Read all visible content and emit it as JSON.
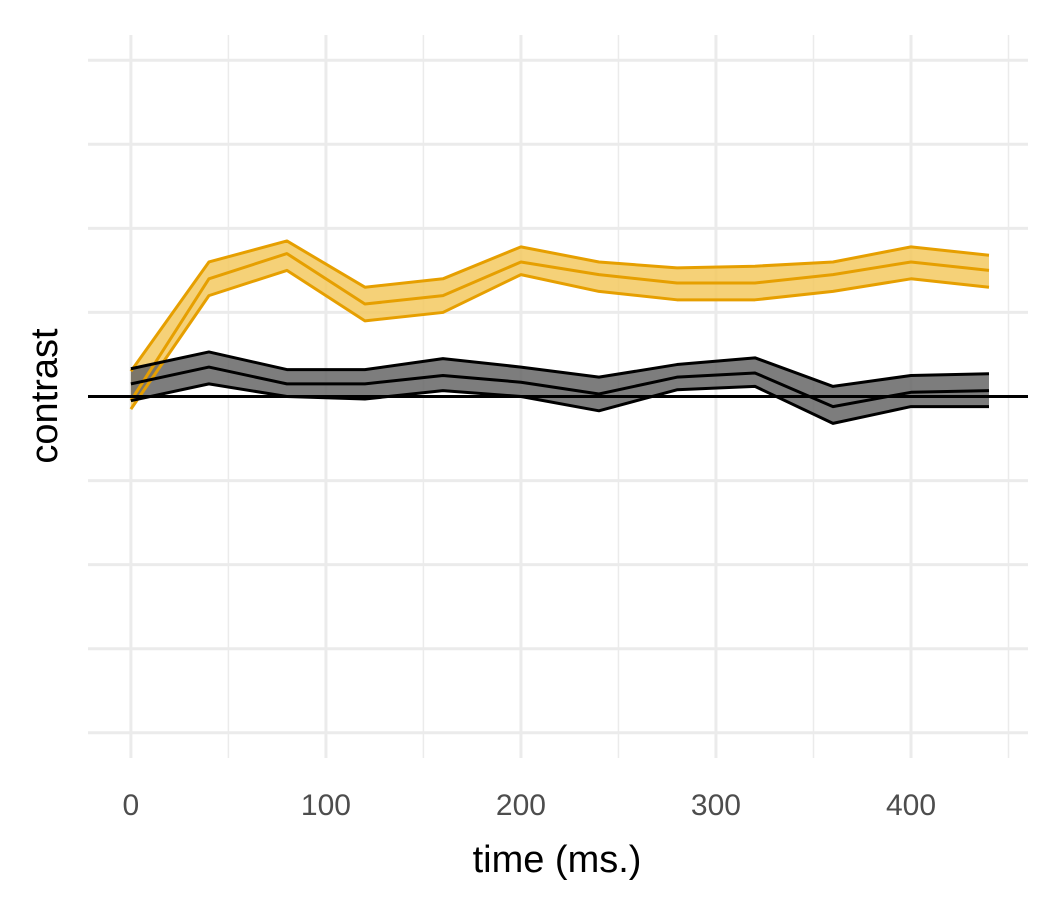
{
  "chart_data": {
    "type": "line",
    "title": "",
    "xlabel": "time (ms.)",
    "ylabel": "contrast",
    "xlim": [
      -22,
      460
    ],
    "ylim": [
      -4.3,
      4.3
    ],
    "x_ticks": [
      0,
      100,
      200,
      300,
      400
    ],
    "y_ticks": [
      -4,
      -3,
      -2,
      -1,
      0,
      1,
      2,
      3,
      4
    ],
    "y_tick_labels_visible": false,
    "grid": true,
    "reference_line_y": 0,
    "legend": "none",
    "x": [
      0,
      40,
      80,
      120,
      160,
      200,
      240,
      280,
      320,
      360,
      400,
      440
    ],
    "series": [
      {
        "color": "#E69F00",
        "fill": "#F3C960",
        "values": [
          -0.05,
          1.4,
          1.7,
          1.1,
          1.2,
          1.6,
          1.45,
          1.35,
          1.35,
          1.45,
          1.6,
          1.5
        ],
        "lower": [
          -0.15,
          1.2,
          1.5,
          0.9,
          1.0,
          1.45,
          1.25,
          1.15,
          1.15,
          1.25,
          1.4,
          1.3
        ],
        "upper": [
          0.3,
          1.6,
          1.85,
          1.3,
          1.4,
          1.78,
          1.6,
          1.53,
          1.55,
          1.6,
          1.78,
          1.68
        ]
      },
      {
        "color": "#000000",
        "fill": "#666666",
        "values": [
          0.15,
          0.35,
          0.15,
          0.15,
          0.25,
          0.17,
          0.03,
          0.23,
          0.28,
          -0.12,
          0.05,
          0.07
        ],
        "lower": [
          -0.05,
          0.15,
          0.0,
          -0.03,
          0.07,
          0.0,
          -0.17,
          0.08,
          0.12,
          -0.32,
          -0.12,
          -0.12
        ],
        "upper": [
          0.33,
          0.53,
          0.32,
          0.32,
          0.45,
          0.35,
          0.23,
          0.38,
          0.46,
          0.12,
          0.25,
          0.27
        ]
      }
    ]
  }
}
